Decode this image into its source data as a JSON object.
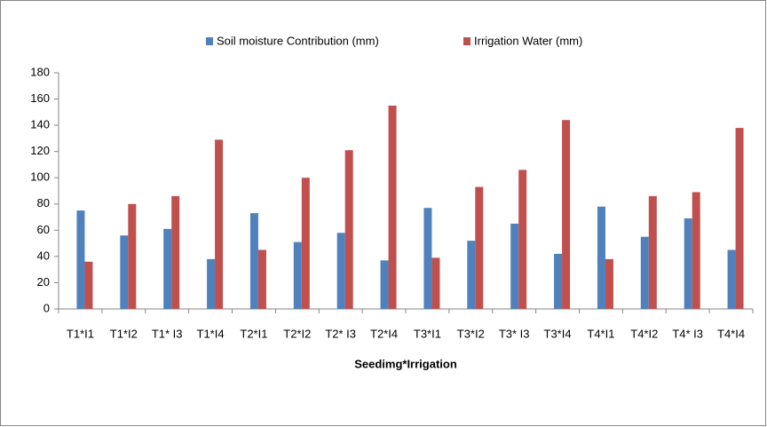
{
  "chart_data": {
    "type": "bar",
    "x_label": "Seedimg*Irrigation",
    "categories": [
      "T1*I1",
      "T1*I2",
      "T1* I3",
      "T1*I4",
      "T2*I1",
      "T2*I2",
      "T2* I3",
      "T2*I4",
      "T3*I1",
      "T3*I2",
      "T3* I3",
      "T3*I4",
      "T4*I1",
      "T4*I2",
      "T4* I3",
      "T4*I4"
    ],
    "series": [
      {
        "name": "Soil moisture Contribution (mm)",
        "color": "#4f81bd",
        "values": [
          75,
          56,
          61,
          38,
          73,
          51,
          58,
          37,
          77,
          52,
          65,
          42,
          78,
          55,
          69,
          45
        ]
      },
      {
        "name": "Irrigation Water (mm)",
        "color": "#c0504d",
        "values": [
          36,
          80,
          86,
          129,
          45,
          100,
          121,
          155,
          39,
          93,
          106,
          144,
          38,
          86,
          89,
          138
        ]
      }
    ],
    "ylim": [
      0,
      180
    ],
    "yticks": [
      0,
      20,
      40,
      60,
      80,
      100,
      120,
      140,
      160,
      180
    ],
    "legend": "top",
    "grid": false
  }
}
